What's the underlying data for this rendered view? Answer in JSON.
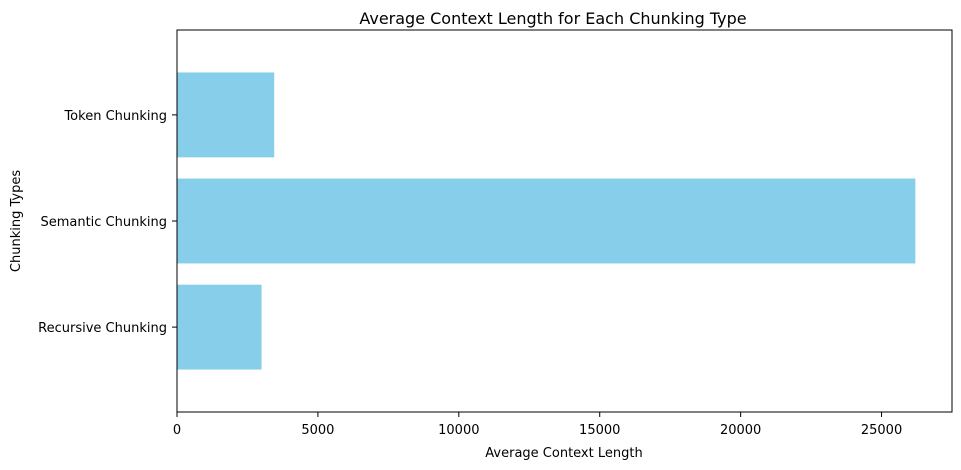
{
  "chart_data": {
    "type": "bar",
    "orientation": "horizontal",
    "title": "Average Context Length for Each Chunking Type",
    "xlabel": "Average Context Length",
    "ylabel": "Chunking Types",
    "categories": [
      "Recursive Chunking",
      "Semantic Chunking",
      "Token Chunking"
    ],
    "values": [
      3000,
      26200,
      3450
    ],
    "xlim": [
      0,
      27500
    ],
    "xticks": [
      0,
      5000,
      10000,
      15000,
      20000,
      25000
    ],
    "xtick_labels": [
      "0",
      "5000",
      "10000",
      "15000",
      "20000",
      "25000"
    ],
    "bar_color": "#87ceeb",
    "grid": false,
    "legend": "none"
  }
}
